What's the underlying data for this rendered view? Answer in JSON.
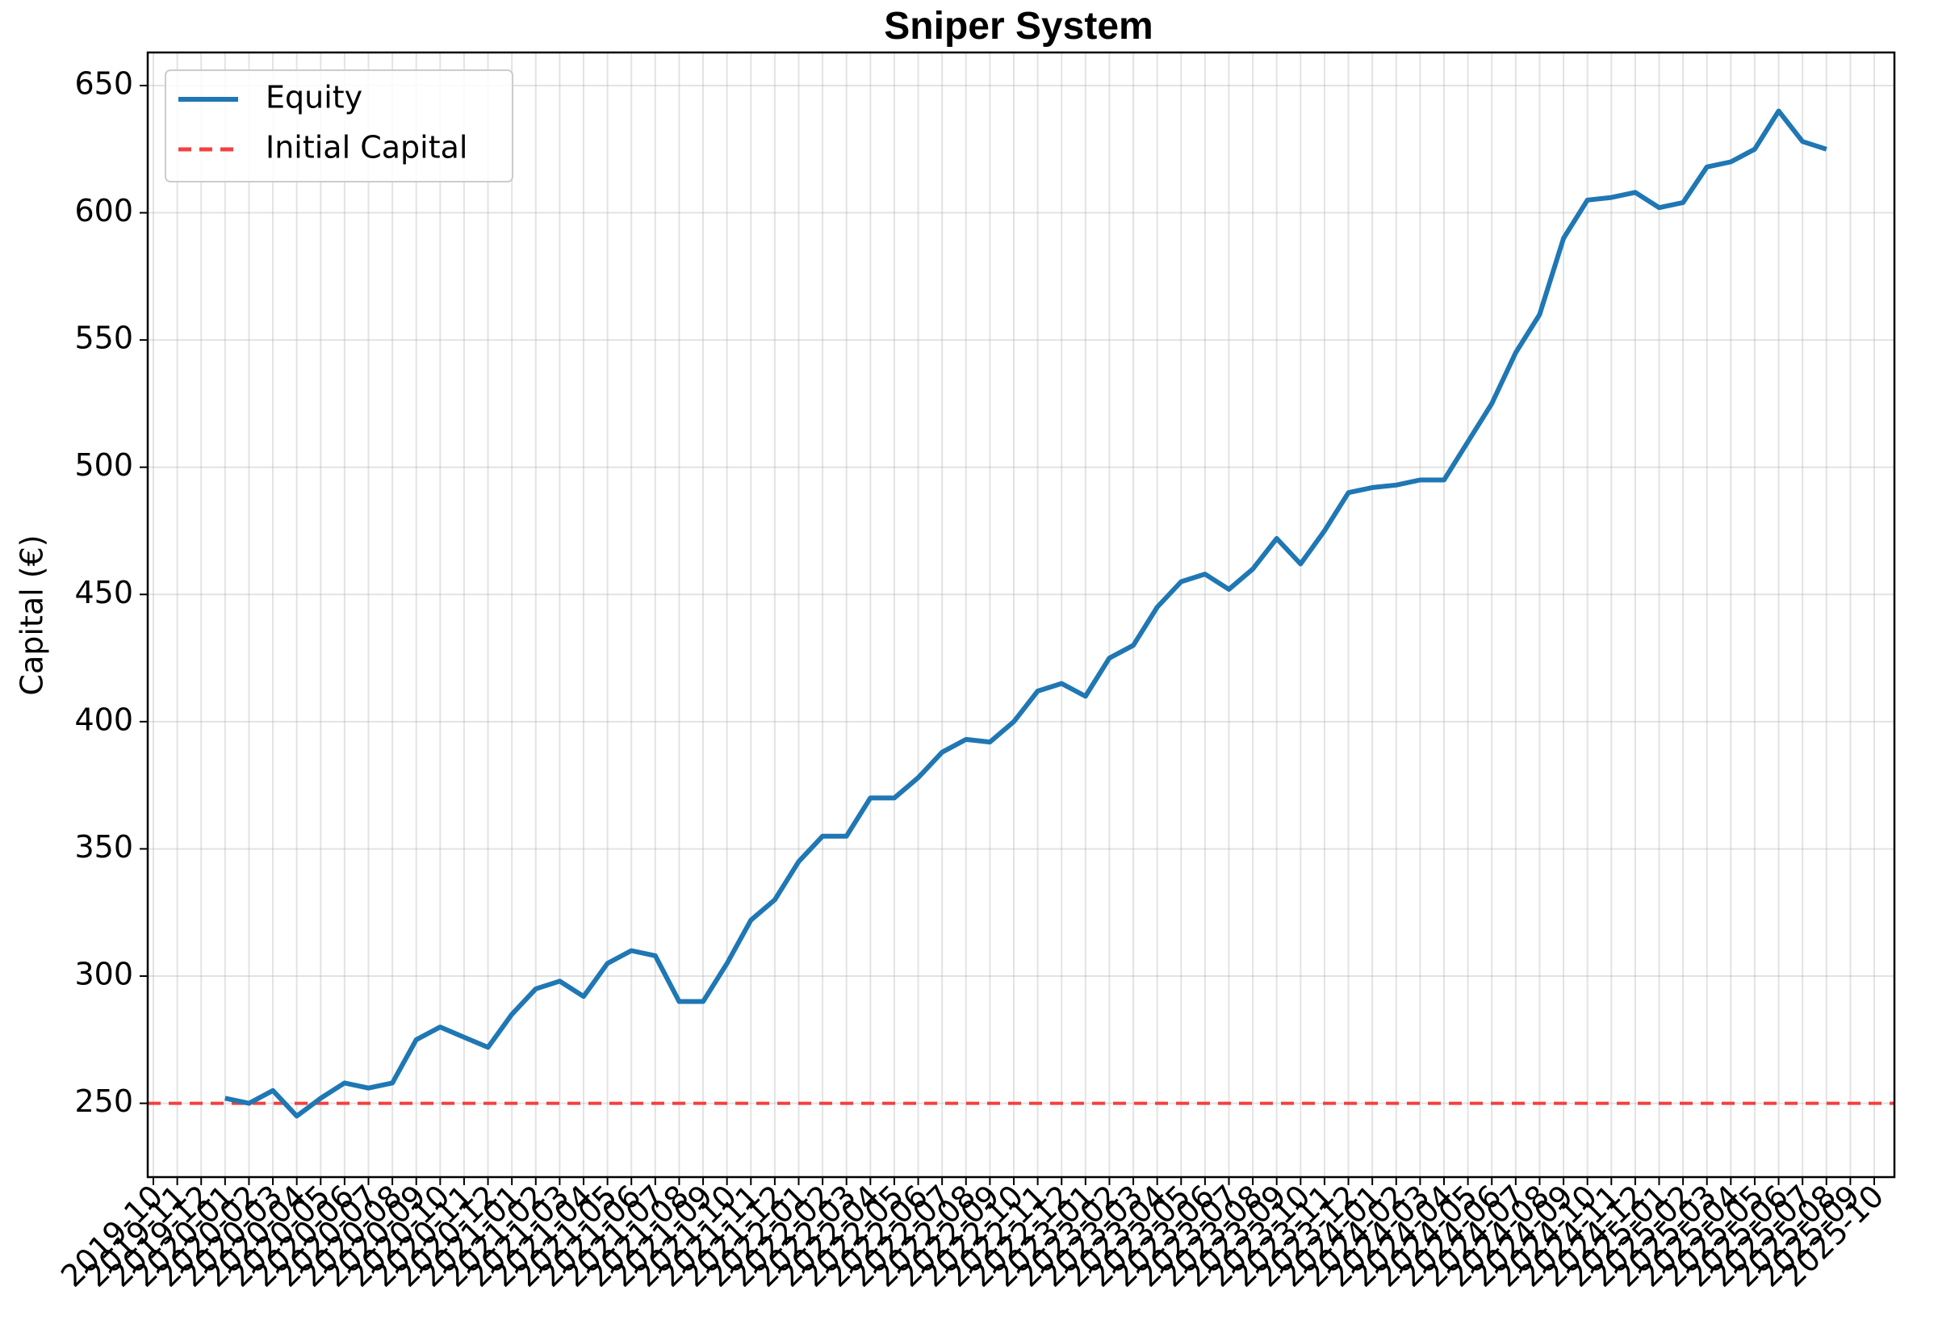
{
  "chart_data": {
    "type": "line",
    "title": "Sniper System",
    "ylabel": "Capital (€)",
    "x": [
      "2020-01",
      "2020-02",
      "2020-03",
      "2020-04",
      "2020-05",
      "2020-06",
      "2020-07",
      "2020-08",
      "2020-09",
      "2020-10",
      "2020-11",
      "2020-12",
      "2021-01",
      "2021-02",
      "2021-03",
      "2021-04",
      "2021-05",
      "2021-06",
      "2021-07",
      "2021-08",
      "2021-09",
      "2021-10",
      "2021-11",
      "2021-12",
      "2022-01",
      "2022-02",
      "2022-03",
      "2022-04",
      "2022-05",
      "2022-06",
      "2022-07",
      "2022-08",
      "2022-09",
      "2022-10",
      "2022-11",
      "2022-12",
      "2023-01",
      "2023-02",
      "2023-03",
      "2023-04",
      "2023-05",
      "2023-06",
      "2023-07",
      "2023-08",
      "2023-09",
      "2023-10",
      "2023-11",
      "2023-12",
      "2024-01",
      "2024-02",
      "2024-03",
      "2024-04",
      "2024-05",
      "2024-06",
      "2024-07",
      "2024-08",
      "2024-09",
      "2024-10",
      "2024-11",
      "2024-12",
      "2025-01",
      "2025-02",
      "2025-03",
      "2025-04",
      "2025-05",
      "2025-06",
      "2025-07",
      "2025-08"
    ],
    "series": [
      {
        "name": "Equity",
        "color": "#1f77b4",
        "values": [
          252,
          250,
          255,
          245,
          252,
          258,
          256,
          258,
          275,
          280,
          276,
          272,
          285,
          295,
          298,
          292,
          305,
          310,
          308,
          290,
          290,
          305,
          322,
          330,
          345,
          355,
          355,
          370,
          370,
          378,
          388,
          393,
          392,
          400,
          412,
          415,
          410,
          425,
          430,
          445,
          455,
          458,
          452,
          460,
          472,
          462,
          475,
          490,
          492,
          493,
          495,
          495,
          510,
          525,
          545,
          560,
          590,
          605,
          606,
          608,
          602,
          604,
          618,
          620,
          625,
          640,
          628,
          625
        ]
      }
    ],
    "hline": {
      "name": "Initial Capital",
      "value": 250,
      "color": "#f44040"
    },
    "xlim": [
      "2019-10",
      "2025-10"
    ],
    "ylim": [
      221,
      663
    ],
    "xticks": [
      "2019-10",
      "2019-11",
      "2019-12",
      "2020-01",
      "2020-02",
      "2020-03",
      "2020-04",
      "2020-05",
      "2020-06",
      "2020-07",
      "2020-08",
      "2020-09",
      "2020-10",
      "2020-11",
      "2020-12",
      "2021-01",
      "2021-02",
      "2021-03",
      "2021-04",
      "2021-05",
      "2021-06",
      "2021-07",
      "2021-08",
      "2021-09",
      "2021-10",
      "2021-11",
      "2021-12",
      "2022-01",
      "2022-02",
      "2022-03",
      "2022-04",
      "2022-05",
      "2022-06",
      "2022-07",
      "2022-08",
      "2022-09",
      "2022-10",
      "2022-11",
      "2022-12",
      "2023-01",
      "2023-02",
      "2023-03",
      "2023-04",
      "2023-05",
      "2023-06",
      "2023-07",
      "2023-08",
      "2023-09",
      "2023-10",
      "2023-11",
      "2023-12",
      "2024-01",
      "2024-02",
      "2024-03",
      "2024-04",
      "2024-05",
      "2024-06",
      "2024-07",
      "2024-08",
      "2024-09",
      "2024-10",
      "2024-11",
      "2024-12",
      "2025-01",
      "2025-02",
      "2025-03",
      "2025-04",
      "2025-05",
      "2025-06",
      "2025-07",
      "2025-08",
      "2025-09",
      "2025-10"
    ],
    "yticks": [
      250,
      300,
      350,
      400,
      450,
      500,
      550,
      600,
      650
    ],
    "grid": true,
    "legend": "upper left"
  }
}
